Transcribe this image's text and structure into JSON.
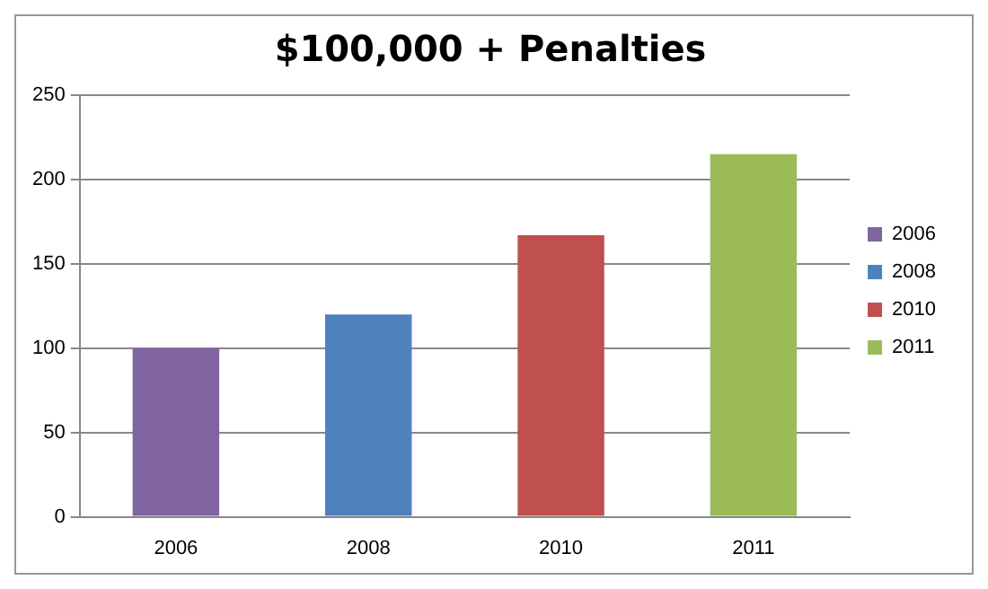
{
  "chart_data": {
    "type": "bar",
    "title": "$100,000 + Penalties",
    "categories": [
      "2006",
      "2008",
      "2010",
      "2011"
    ],
    "series": [
      {
        "name": "2006",
        "color": "#8064a2",
        "values": [
          100,
          null,
          null,
          null
        ]
      },
      {
        "name": "2008",
        "color": "#4f81bd",
        "values": [
          null,
          120,
          null,
          null
        ]
      },
      {
        "name": "2010",
        "color": "#c0504d",
        "values": [
          null,
          null,
          167,
          null
        ]
      },
      {
        "name": "2011",
        "color": "#9bbb59",
        "values": [
          null,
          null,
          null,
          215
        ]
      }
    ],
    "ylim": [
      0,
      250
    ],
    "yticks": [
      0,
      50,
      100,
      150,
      200,
      250
    ],
    "grid": "y",
    "legend": "right"
  }
}
